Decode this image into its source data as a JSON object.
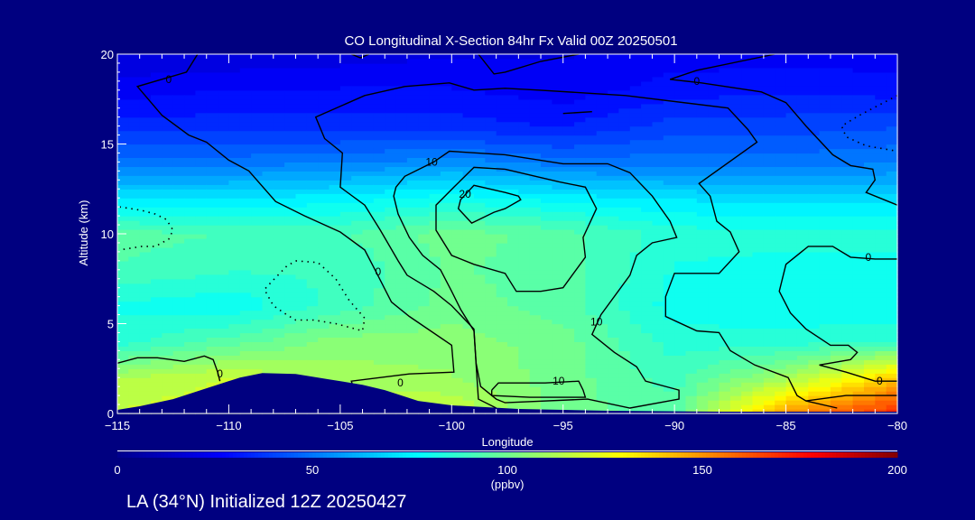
{
  "chart_data": {
    "type": "heatmap",
    "title": "CO Longitudinal X-Section 84hr  Fx Valid 00Z 20250501",
    "xlabel": "Longitude",
    "ylabel": "Altitude (km)",
    "xlim": [
      -115,
      -80
    ],
    "ylim": [
      0,
      20
    ],
    "x_ticks": [
      -115,
      -110,
      -105,
      -100,
      -95,
      -90,
      -85,
      -80
    ],
    "x_tick_labels": [
      "−115",
      "−110",
      "−105",
      "−100",
      "−95",
      "−90",
      "−85",
      "−80"
    ],
    "y_ticks": [
      0,
      5,
      10,
      15,
      20
    ],
    "y_tick_labels": [
      "0",
      "5",
      "10",
      "15",
      "20"
    ],
    "field": {
      "name": "CO",
      "units": "ppbv",
      "lon": [
        -115,
        -110,
        -105,
        -100,
        -95,
        -90,
        -85,
        -80
      ],
      "alt": [
        0,
        2,
        4,
        6,
        8,
        10,
        12,
        14,
        16,
        18,
        20
      ],
      "values": [
        [
          118,
          122,
          120,
          118,
          100,
          95,
          150,
          172
        ],
        [
          112,
          118,
          110,
          108,
          100,
          90,
          110,
          140
        ],
        [
          85,
          95,
          105,
          105,
          100,
          85,
          85,
          88
        ],
        [
          82,
          78,
          90,
          100,
          95,
          80,
          78,
          78
        ],
        [
          92,
          88,
          88,
          98,
          95,
          82,
          80,
          80
        ],
        [
          95,
          92,
          92,
          100,
          95,
          85,
          85,
          85
        ],
        [
          72,
          72,
          75,
          80,
          75,
          72,
          70,
          70
        ],
        [
          50,
          50,
          52,
          55,
          50,
          50,
          50,
          52
        ],
        [
          35,
          35,
          35,
          35,
          32,
          40,
          40,
          42
        ],
        [
          25,
          28,
          28,
          28,
          25,
          30,
          32,
          30
        ],
        [
          18,
          18,
          20,
          22,
          22,
          25,
          25,
          25
        ]
      ]
    },
    "colorbar": {
      "min": 0,
      "max": 200,
      "ticks": [
        0,
        50,
        100,
        150,
        200
      ],
      "tick_labels": [
        "0",
        "50",
        "100",
        "150",
        "200"
      ],
      "units_label": "(ppbv)",
      "stops": [
        {
          "v": 0,
          "c": "#00008c"
        },
        {
          "v": 27,
          "c": "#0000ff"
        },
        {
          "v": 77,
          "c": "#00ffff"
        },
        {
          "v": 103,
          "c": "#80ff80"
        },
        {
          "v": 129,
          "c": "#ffff00"
        },
        {
          "v": 178,
          "c": "#ff0000"
        },
        {
          "v": 200,
          "c": "#800000"
        }
      ]
    },
    "terrain": [
      [
        -115,
        0.2
      ],
      [
        -114,
        0.4
      ],
      [
        -112.5,
        0.8
      ],
      [
        -111,
        1.4
      ],
      [
        -109.5,
        2.0
      ],
      [
        -108.5,
        2.25
      ],
      [
        -107,
        2.2
      ],
      [
        -105.5,
        1.9
      ],
      [
        -104,
        1.6
      ],
      [
        -103,
        1.3
      ],
      [
        -101.5,
        0.7
      ],
      [
        -100,
        0.45
      ],
      [
        -97,
        0.25
      ],
      [
        -93,
        0.15
      ],
      [
        -88,
        0.1
      ],
      [
        -85,
        0.1
      ],
      [
        -80,
        0.1
      ]
    ],
    "contours": [
      {
        "level": 0,
        "style": "solid",
        "points": [
          [
            -111.4,
            20
          ],
          [
            -111.9,
            19.0
          ],
          [
            -114.1,
            18.2
          ],
          [
            -113.0,
            16.6
          ],
          [
            -111.8,
            15.5
          ],
          [
            -111.0,
            15.1
          ],
          [
            -110.0,
            14.1
          ],
          [
            -109.1,
            13.5
          ],
          [
            -107.9,
            11.8
          ],
          [
            -106.6,
            11.0
          ],
          [
            -105.0,
            10.1
          ],
          [
            -103.9,
            9.1
          ],
          [
            -103.4,
            7.9
          ],
          [
            -102.7,
            6.2
          ],
          [
            -101.9,
            5.4
          ],
          [
            -100.0,
            3.8
          ],
          [
            -99.9,
            2.3
          ],
          [
            -101.9,
            2.2
          ],
          [
            -104.5,
            1.8
          ],
          [
            -104.4,
            1.4
          ]
        ]
      },
      {
        "level": 0,
        "style": "solid",
        "points": [
          [
            -98.0,
            0.3
          ],
          [
            -98.8,
            0.8
          ],
          [
            -98.9,
            2.7
          ],
          [
            -99.0,
            4.7
          ],
          [
            -100.0,
            6.0
          ],
          [
            -100.8,
            6.8
          ],
          [
            -102.0,
            7.7
          ],
          [
            -102.4,
            8.5
          ],
          [
            -103.2,
            10.2
          ],
          [
            -103.9,
            11.6
          ],
          [
            -105.0,
            12.6
          ],
          [
            -104.9,
            14.5
          ],
          [
            -105.7,
            15.3
          ],
          [
            -106.1,
            16.5
          ],
          [
            -103.9,
            17.7
          ],
          [
            -102.1,
            18.2
          ],
          [
            -100.1,
            18.4
          ],
          [
            -99.0,
            18.0
          ],
          [
            -97.6,
            18.1
          ],
          [
            -96.1,
            18.0
          ],
          [
            -92.2,
            17.7
          ],
          [
            -87.6,
            17.0
          ],
          [
            -86.7,
            15.8
          ],
          [
            -86.3,
            15.1
          ],
          [
            -88.9,
            12.8
          ],
          [
            -88.4,
            12.1
          ],
          [
            -88.1,
            10.7
          ],
          [
            -87.5,
            10.1
          ],
          [
            -87.1,
            9.0
          ],
          [
            -88.0,
            7.8
          ],
          [
            -90.0,
            7.8
          ],
          [
            -90.4,
            6.5
          ],
          [
            -90.4,
            5.4
          ],
          [
            -89.0,
            4.6
          ],
          [
            -88.0,
            4.5
          ],
          [
            -87.5,
            3.5
          ],
          [
            -86.4,
            2.7
          ],
          [
            -84.9,
            2.0
          ],
          [
            -84.5,
            1.0
          ],
          [
            -84.1,
            0.7
          ],
          [
            -82.7,
            0.3
          ]
        ]
      },
      {
        "level": 10,
        "style": "solid",
        "points": [
          [
            -97.6,
            14.4
          ],
          [
            -100.1,
            14.6
          ],
          [
            -100.8,
            14.0
          ],
          [
            -102.1,
            13.2
          ],
          [
            -102.5,
            12.6
          ],
          [
            -102.6,
            12.1
          ],
          [
            -102.4,
            11.1
          ],
          [
            -101.9,
            9.8
          ],
          [
            -101.3,
            8.8
          ],
          [
            -100.5,
            8.0
          ],
          [
            -100.0,
            6.8
          ],
          [
            -99.6,
            5.8
          ],
          [
            -99.0,
            4.6
          ],
          [
            -98.9,
            2.8
          ],
          [
            -98.7,
            1.5
          ],
          [
            -98.0,
            0.8
          ],
          [
            -97.6,
            0.6
          ],
          [
            -93.9,
            0.8
          ],
          [
            -92.0,
            0.3
          ],
          [
            -89.8,
            0.8
          ],
          [
            -89.8,
            1.3
          ],
          [
            -91.3,
            1.8
          ],
          [
            -91.7,
            2.6
          ],
          [
            -92.7,
            3.4
          ],
          [
            -93.7,
            4.4
          ],
          [
            -93.3,
            5.5
          ],
          [
            -92.0,
            7.7
          ],
          [
            -91.7,
            8.8
          ],
          [
            -91.0,
            9.5
          ],
          [
            -89.9,
            9.8
          ],
          [
            -90.2,
            10.7
          ],
          [
            -90.6,
            11.4
          ],
          [
            -91.0,
            12.1
          ],
          [
            -92.0,
            13.4
          ],
          [
            -93.0,
            13.9
          ],
          [
            -95.0,
            13.9
          ],
          [
            -97.6,
            14.4
          ]
        ]
      },
      {
        "level": 10,
        "style": "solid",
        "points": [
          [
            -98.2,
            1.3
          ],
          [
            -97.9,
            1.7
          ],
          [
            -95.8,
            1.7
          ],
          [
            -94.3,
            1.8
          ],
          [
            -94.1,
            1.3
          ],
          [
            -94.0,
            0.9
          ],
          [
            -96.5,
            0.9
          ],
          [
            -98.2,
            1.0
          ],
          [
            -98.2,
            1.3
          ]
        ]
      },
      {
        "level": 20,
        "style": "solid",
        "points": [
          [
            -97.6,
            13.6
          ],
          [
            -99.0,
            13.7
          ],
          [
            -99.9,
            12.6
          ],
          [
            -100.7,
            11.6
          ],
          [
            -100.7,
            10.2
          ],
          [
            -100.0,
            8.8
          ],
          [
            -99.0,
            8.3
          ],
          [
            -97.6,
            7.8
          ],
          [
            -97.1,
            6.8
          ],
          [
            -96.0,
            6.8
          ],
          [
            -95.0,
            7.0
          ],
          [
            -94.0,
            8.7
          ],
          [
            -94.1,
            9.8
          ],
          [
            -93.5,
            11.4
          ],
          [
            -94.0,
            12.6
          ],
          [
            -95.2,
            12.9
          ],
          [
            -97.6,
            13.6
          ]
        ]
      },
      {
        "level": 20,
        "style": "solid",
        "points": [
          [
            -97.6,
            12.3
          ],
          [
            -99.0,
            12.7
          ],
          [
            -99.6,
            11.9
          ],
          [
            -99.7,
            11.4
          ],
          [
            -99.1,
            10.6
          ],
          [
            -98.1,
            11.2
          ],
          [
            -97.6,
            11.4
          ],
          [
            -96.9,
            11.9
          ],
          [
            -97.0,
            12.1
          ],
          [
            -97.6,
            12.3
          ]
        ]
      },
      {
        "level": 0,
        "style": "solid",
        "points": [
          [
            -80.0,
            11.6
          ],
          [
            -81.4,
            12.3
          ],
          [
            -81.0,
            13.0
          ],
          [
            -81.1,
            13.6
          ],
          [
            -82.1,
            13.8
          ],
          [
            -82.9,
            14.4
          ],
          [
            -84.1,
            16.0
          ],
          [
            -85.0,
            17.3
          ],
          [
            -86.1,
            17.9
          ],
          [
            -88.8,
            18.4
          ],
          [
            -90.2,
            18.6
          ],
          [
            -89.0,
            19.1
          ],
          [
            -85.5,
            20
          ]
        ]
      },
      {
        "level": 0,
        "style": "solid",
        "points": [
          [
            -80.0,
            8.6
          ],
          [
            -81.0,
            8.6
          ],
          [
            -82.1,
            8.7
          ],
          [
            -82.9,
            9.3
          ],
          [
            -84.0,
            9.3
          ],
          [
            -85.0,
            8.3
          ],
          [
            -85.3,
            6.8
          ],
          [
            -84.8,
            5.6
          ],
          [
            -84.1,
            4.7
          ],
          [
            -83.0,
            3.8
          ],
          [
            -82.2,
            3.8
          ],
          [
            -81.8,
            3.4
          ],
          [
            -82.1,
            3.0
          ],
          [
            -83.5,
            2.7
          ],
          [
            -82.3,
            2.3
          ],
          [
            -81.0,
            1.8
          ],
          [
            -80.0,
            1.8
          ]
        ]
      },
      {
        "level": 0,
        "style": "solid",
        "points": [
          [
            -84.1,
            0.7
          ],
          [
            -82.3,
            1.0
          ],
          [
            -80.0,
            1.0
          ]
        ]
      },
      {
        "level": 0,
        "style": "solid",
        "points": [
          [
            -104.5,
            20
          ],
          [
            -104.1,
            19.8
          ],
          [
            -103.7,
            20
          ]
        ]
      },
      {
        "level": 0,
        "style": "solid",
        "points": [
          [
            -98.8,
            20
          ],
          [
            -98.1,
            18.9
          ],
          [
            -97.6,
            19.0
          ],
          [
            -96.0,
            19.6
          ],
          [
            -94.3,
            20
          ]
        ]
      },
      {
        "level": 0,
        "style": "solid",
        "points": [
          [
            -95.0,
            16.7
          ],
          [
            -93.7,
            16.8
          ]
        ]
      },
      {
        "level": 0,
        "style": "solid",
        "points": [
          [
            -115.0,
            2.8
          ],
          [
            -114.1,
            3.1
          ],
          [
            -113.2,
            3.1
          ],
          [
            -112.0,
            2.9
          ],
          [
            -111.1,
            3.2
          ],
          [
            -110.7,
            3.0
          ],
          [
            -110.5,
            2.3
          ],
          [
            -110.4,
            1.8
          ]
        ]
      },
      {
        "level": -10,
        "style": "dotted",
        "points": [
          [
            -114.9,
            11.5
          ],
          [
            -113.9,
            11.3
          ],
          [
            -113.3,
            11.1
          ],
          [
            -112.8,
            10.8
          ],
          [
            -112.5,
            10.2
          ],
          [
            -112.7,
            9.7
          ],
          [
            -113.3,
            9.3
          ],
          [
            -113.9,
            9.3
          ],
          [
            -114.9,
            9.1
          ]
        ]
      },
      {
        "level": -10,
        "style": "dotted",
        "points": [
          [
            -107.0,
            8.5
          ],
          [
            -106.0,
            8.4
          ],
          [
            -105.2,
            7.5
          ],
          [
            -104.6,
            6.3
          ],
          [
            -103.9,
            5.3
          ],
          [
            -104.0,
            4.6
          ],
          [
            -105.2,
            5.0
          ],
          [
            -106.2,
            5.2
          ],
          [
            -107.0,
            5.2
          ],
          [
            -107.4,
            5.5
          ],
          [
            -108.0,
            6.0
          ],
          [
            -108.4,
            6.9
          ],
          [
            -108.1,
            7.3
          ],
          [
            -107.4,
            8.2
          ],
          [
            -107.0,
            8.5
          ]
        ]
      },
      {
        "level": -10,
        "style": "dotted",
        "points": [
          [
            -80.0,
            17.7
          ],
          [
            -81.7,
            16.6
          ],
          [
            -82.5,
            16.0
          ],
          [
            -82.3,
            15.4
          ],
          [
            -81.4,
            14.9
          ],
          [
            -80.0,
            14.6
          ]
        ]
      }
    ],
    "contour_labels": [
      {
        "text": "0",
        "lon": -112.7,
        "alt": 18.6
      },
      {
        "text": "0",
        "lon": -103.3,
        "alt": 7.9
      },
      {
        "text": "0",
        "lon": -110.4,
        "alt": 2.2
      },
      {
        "text": "0",
        "lon": -102.3,
        "alt": 1.7
      },
      {
        "text": "10",
        "lon": -100.9,
        "alt": 14.0
      },
      {
        "text": "20",
        "lon": -99.4,
        "alt": 12.2
      },
      {
        "text": "0",
        "lon": -89.0,
        "alt": 18.5
      },
      {
        "text": "0",
        "lon": -81.3,
        "alt": 8.7
      },
      {
        "text": "0",
        "lon": -80.8,
        "alt": 1.8
      },
      {
        "text": "10",
        "lon": -95.2,
        "alt": 1.8
      },
      {
        "text": "10",
        "lon": -93.5,
        "alt": 5.1
      }
    ]
  },
  "footer": "LA (34°N) Initialized 12Z 20250427",
  "colors": {
    "background": "#000080",
    "terrain": "#000080",
    "axis": "#ffffff",
    "contour": "#000000"
  }
}
